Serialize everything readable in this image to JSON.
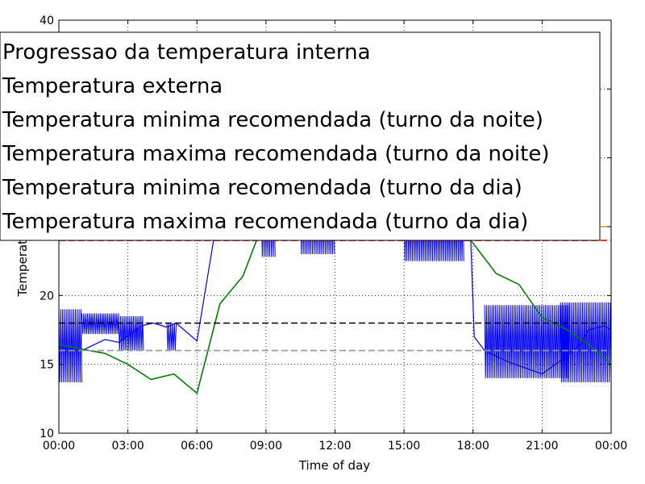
{
  "chart_data": {
    "type": "line",
    "title": "",
    "xlabel": "Time of day",
    "ylabel": "Temperature",
    "xlim": [
      0,
      24
    ],
    "ylim": [
      10,
      40
    ],
    "grid": true,
    "legend_placement": "top-left (overlapping plot)",
    "x_ticks": [
      {
        "value": 0,
        "label": "00:00"
      },
      {
        "value": 3,
        "label": "03:00"
      },
      {
        "value": 6,
        "label": "06:00"
      },
      {
        "value": 9,
        "label": "09:00"
      },
      {
        "value": 12,
        "label": "12:00"
      },
      {
        "value": 15,
        "label": "15:00"
      },
      {
        "value": 18,
        "label": "18:00"
      },
      {
        "value": 21,
        "label": "21:00"
      },
      {
        "value": 24,
        "label": "00:00"
      }
    ],
    "y_ticks": [
      {
        "value": 10,
        "label": "10"
      },
      {
        "value": 15,
        "label": "15"
      },
      {
        "value": 20,
        "label": "20"
      },
      {
        "value": 40,
        "label": "40"
      }
    ],
    "series": [
      {
        "name": "Progressao da temperatura interna",
        "color": "#0000ff",
        "style": "solid",
        "note": "rapid oscillation (dense sawtooth) segments",
        "baseline": [
          [
            0,
            16.3
          ],
          [
            1,
            16.0
          ],
          [
            2,
            16.8
          ],
          [
            2.6,
            16.6
          ],
          [
            3.6,
            17.8
          ],
          [
            4.1,
            18.0
          ],
          [
            4.7,
            17.7
          ],
          [
            5.1,
            18.0
          ],
          [
            6.0,
            16.7
          ],
          [
            7.0,
            26.8
          ],
          [
            8.0,
            27.5
          ],
          [
            9.2,
            24.8
          ],
          [
            10.5,
            25.5
          ],
          [
            12.0,
            25.5
          ],
          [
            14.0,
            25.0
          ],
          [
            17.3,
            24.0
          ],
          [
            17.9,
            24.0
          ],
          [
            18.05,
            17.0
          ],
          [
            18.5,
            16.0
          ],
          [
            19.5,
            15.2
          ],
          [
            21.0,
            14.3
          ],
          [
            22.0,
            15.5
          ],
          [
            22.7,
            16.5
          ],
          [
            23.0,
            17.5
          ],
          [
            23.7,
            17.8
          ],
          [
            24.0,
            17.5
          ]
        ],
        "bands": [
          {
            "from": 0.0,
            "to": 1.0,
            "low": 13.7,
            "high": 19.0
          },
          {
            "from": 1.0,
            "to": 2.6,
            "low": 17.2,
            "high": 18.7
          },
          {
            "from": 2.6,
            "to": 3.7,
            "low": 16.0,
            "high": 18.5
          },
          {
            "from": 4.7,
            "to": 5.1,
            "low": 16.0,
            "high": 18.0
          },
          {
            "from": 8.8,
            "to": 9.4,
            "low": 22.8,
            "high": 26.8
          },
          {
            "from": 10.5,
            "to": 12.0,
            "low": 23.0,
            "high": 26.8
          },
          {
            "from": 15.0,
            "to": 17.6,
            "low": 22.5,
            "high": 26.8
          },
          {
            "from": 18.5,
            "to": 22.2,
            "low": 14.0,
            "high": 19.3
          },
          {
            "from": 21.8,
            "to": 24.0,
            "low": 13.7,
            "high": 19.5
          }
        ]
      },
      {
        "name": "Temperatura externa",
        "color": "#008000",
        "style": "solid",
        "x": [
          0,
          2,
          3,
          4,
          5,
          6,
          7,
          8,
          9,
          17,
          18,
          19,
          20,
          21,
          22,
          23,
          24
        ],
        "y": [
          16.4,
          15.8,
          15.0,
          13.9,
          14.3,
          12.9,
          19.4,
          21.4,
          25.8,
          25.8,
          23.8,
          21.6,
          20.8,
          18.4,
          17.6,
          16.5,
          15.0
        ]
      },
      {
        "name": "Temperatura minima recomendada (turno da noite)",
        "color": "#000000",
        "style": "dashed",
        "x": [
          0,
          24
        ],
        "y": [
          18,
          18
        ]
      },
      {
        "name": "Temperatura maxima recomendada (turno da noite)",
        "color": "#ff0000",
        "style": "dashed",
        "x": [
          0,
          24
        ],
        "y": [
          24,
          24
        ]
      },
      {
        "name": "Temperatura minima recomendada (turno da dia)",
        "color": "#999999",
        "style": "dashed",
        "x": [
          0,
          24
        ],
        "y": [
          16,
          16
        ]
      },
      {
        "name": "Temperatura maxima recomendada (turno da dia)",
        "color": "#ff8c00",
        "style": "dashed",
        "x": [
          0,
          24
        ],
        "y": [
          25,
          25
        ]
      }
    ]
  }
}
